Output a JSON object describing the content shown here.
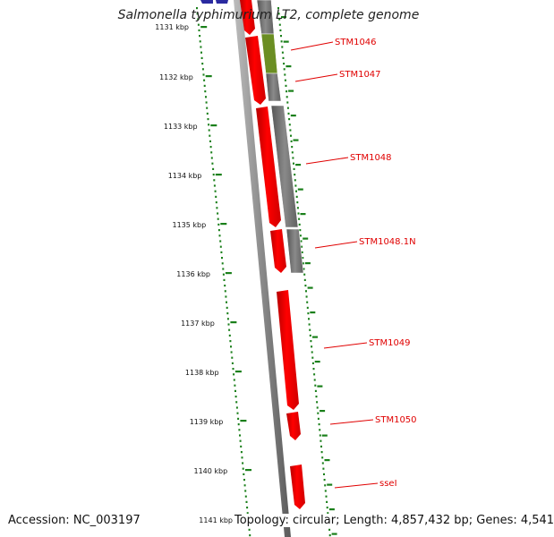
{
  "header": {
    "title": "Salmonella typhimurium LT2, complete genome"
  },
  "footer": {
    "accession": "Accession: NC_003197",
    "topology": "Topology: circular; Length: 4,857,432 bp; Genes: 4,541"
  },
  "scale": {
    "unit": "kbp",
    "ticks": [
      "1131 kbp",
      "1132 kbp",
      "1133 kbp",
      "1134 kbp",
      "1135 kbp",
      "1136 kbp",
      "1137 kbp",
      "1138 kbp",
      "1139 kbp",
      "1140 kbp",
      "1141 kbp"
    ]
  },
  "genes": [
    {
      "label": "STM1046"
    },
    {
      "label": "STM1047"
    },
    {
      "label": "STM1048"
    },
    {
      "label": "STM1048.1N"
    },
    {
      "label": "STM1049"
    },
    {
      "label": "STM1050"
    },
    {
      "label": "sseI"
    }
  ],
  "colors": {
    "gene": "#ff0000",
    "cog_gray": "#707070",
    "cog_green": "#6b8e23",
    "gc_skew": "#1a7f1a",
    "backbone": "#8a8a8a",
    "label": "#e00000",
    "blue_feature": "#2a2aa0"
  }
}
